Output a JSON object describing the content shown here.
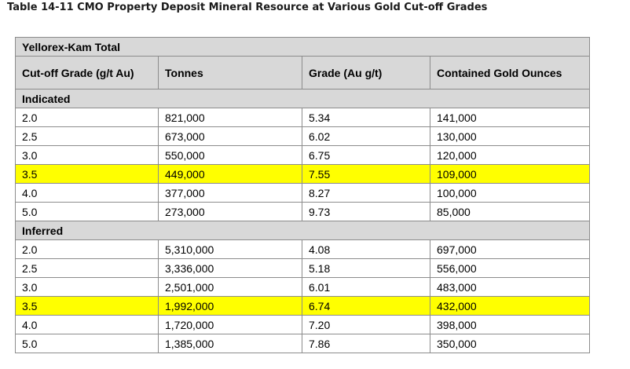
{
  "caption": "Table 14-11 CMO Property Deposit Mineral Resource at Various Gold Cut-off Grades",
  "table": {
    "title": "Yellorex-Kam Total",
    "headers": [
      "Cut-off Grade (g/t Au)",
      "Tonnes",
      "Grade (Au g/t)",
      "Contained Gold Ounces"
    ],
    "highlight_color": "#ffff00",
    "sections": [
      {
        "label": "Indicated",
        "rows": [
          {
            "cutoff": "2.0",
            "tonnes": "821,000",
            "grade": "5.34",
            "ounces": "141,000",
            "highlight": false
          },
          {
            "cutoff": "2.5",
            "tonnes": "673,000",
            "grade": "6.02",
            "ounces": "130,000",
            "highlight": false
          },
          {
            "cutoff": "3.0",
            "tonnes": "550,000",
            "grade": "6.75",
            "ounces": "120,000",
            "highlight": false
          },
          {
            "cutoff": "3.5",
            "tonnes": "449,000",
            "grade": "7.55",
            "ounces": "109,000",
            "highlight": true
          },
          {
            "cutoff": "4.0",
            "tonnes": "377,000",
            "grade": "8.27",
            "ounces": "100,000",
            "highlight": false
          },
          {
            "cutoff": "5.0",
            "tonnes": "273,000",
            "grade": "9.73",
            "ounces": "85,000",
            "highlight": false
          }
        ]
      },
      {
        "label": "Inferred",
        "rows": [
          {
            "cutoff": "2.0",
            "tonnes": "5,310,000",
            "grade": "4.08",
            "ounces": "697,000",
            "highlight": false
          },
          {
            "cutoff": "2.5",
            "tonnes": "3,336,000",
            "grade": "5.18",
            "ounces": "556,000",
            "highlight": false
          },
          {
            "cutoff": "3.0",
            "tonnes": "2,501,000",
            "grade": "6.01",
            "ounces": "483,000",
            "highlight": false
          },
          {
            "cutoff": "3.5",
            "tonnes": "1,992,000",
            "grade": "6.74",
            "ounces": "432,000",
            "highlight": true
          },
          {
            "cutoff": "4.0",
            "tonnes": "1,720,000",
            "grade": "7.20",
            "ounces": "398,000",
            "highlight": false
          },
          {
            "cutoff": "5.0",
            "tonnes": "1,385,000",
            "grade": "7.86",
            "ounces": "350,000",
            "highlight": false
          }
        ]
      }
    ]
  }
}
